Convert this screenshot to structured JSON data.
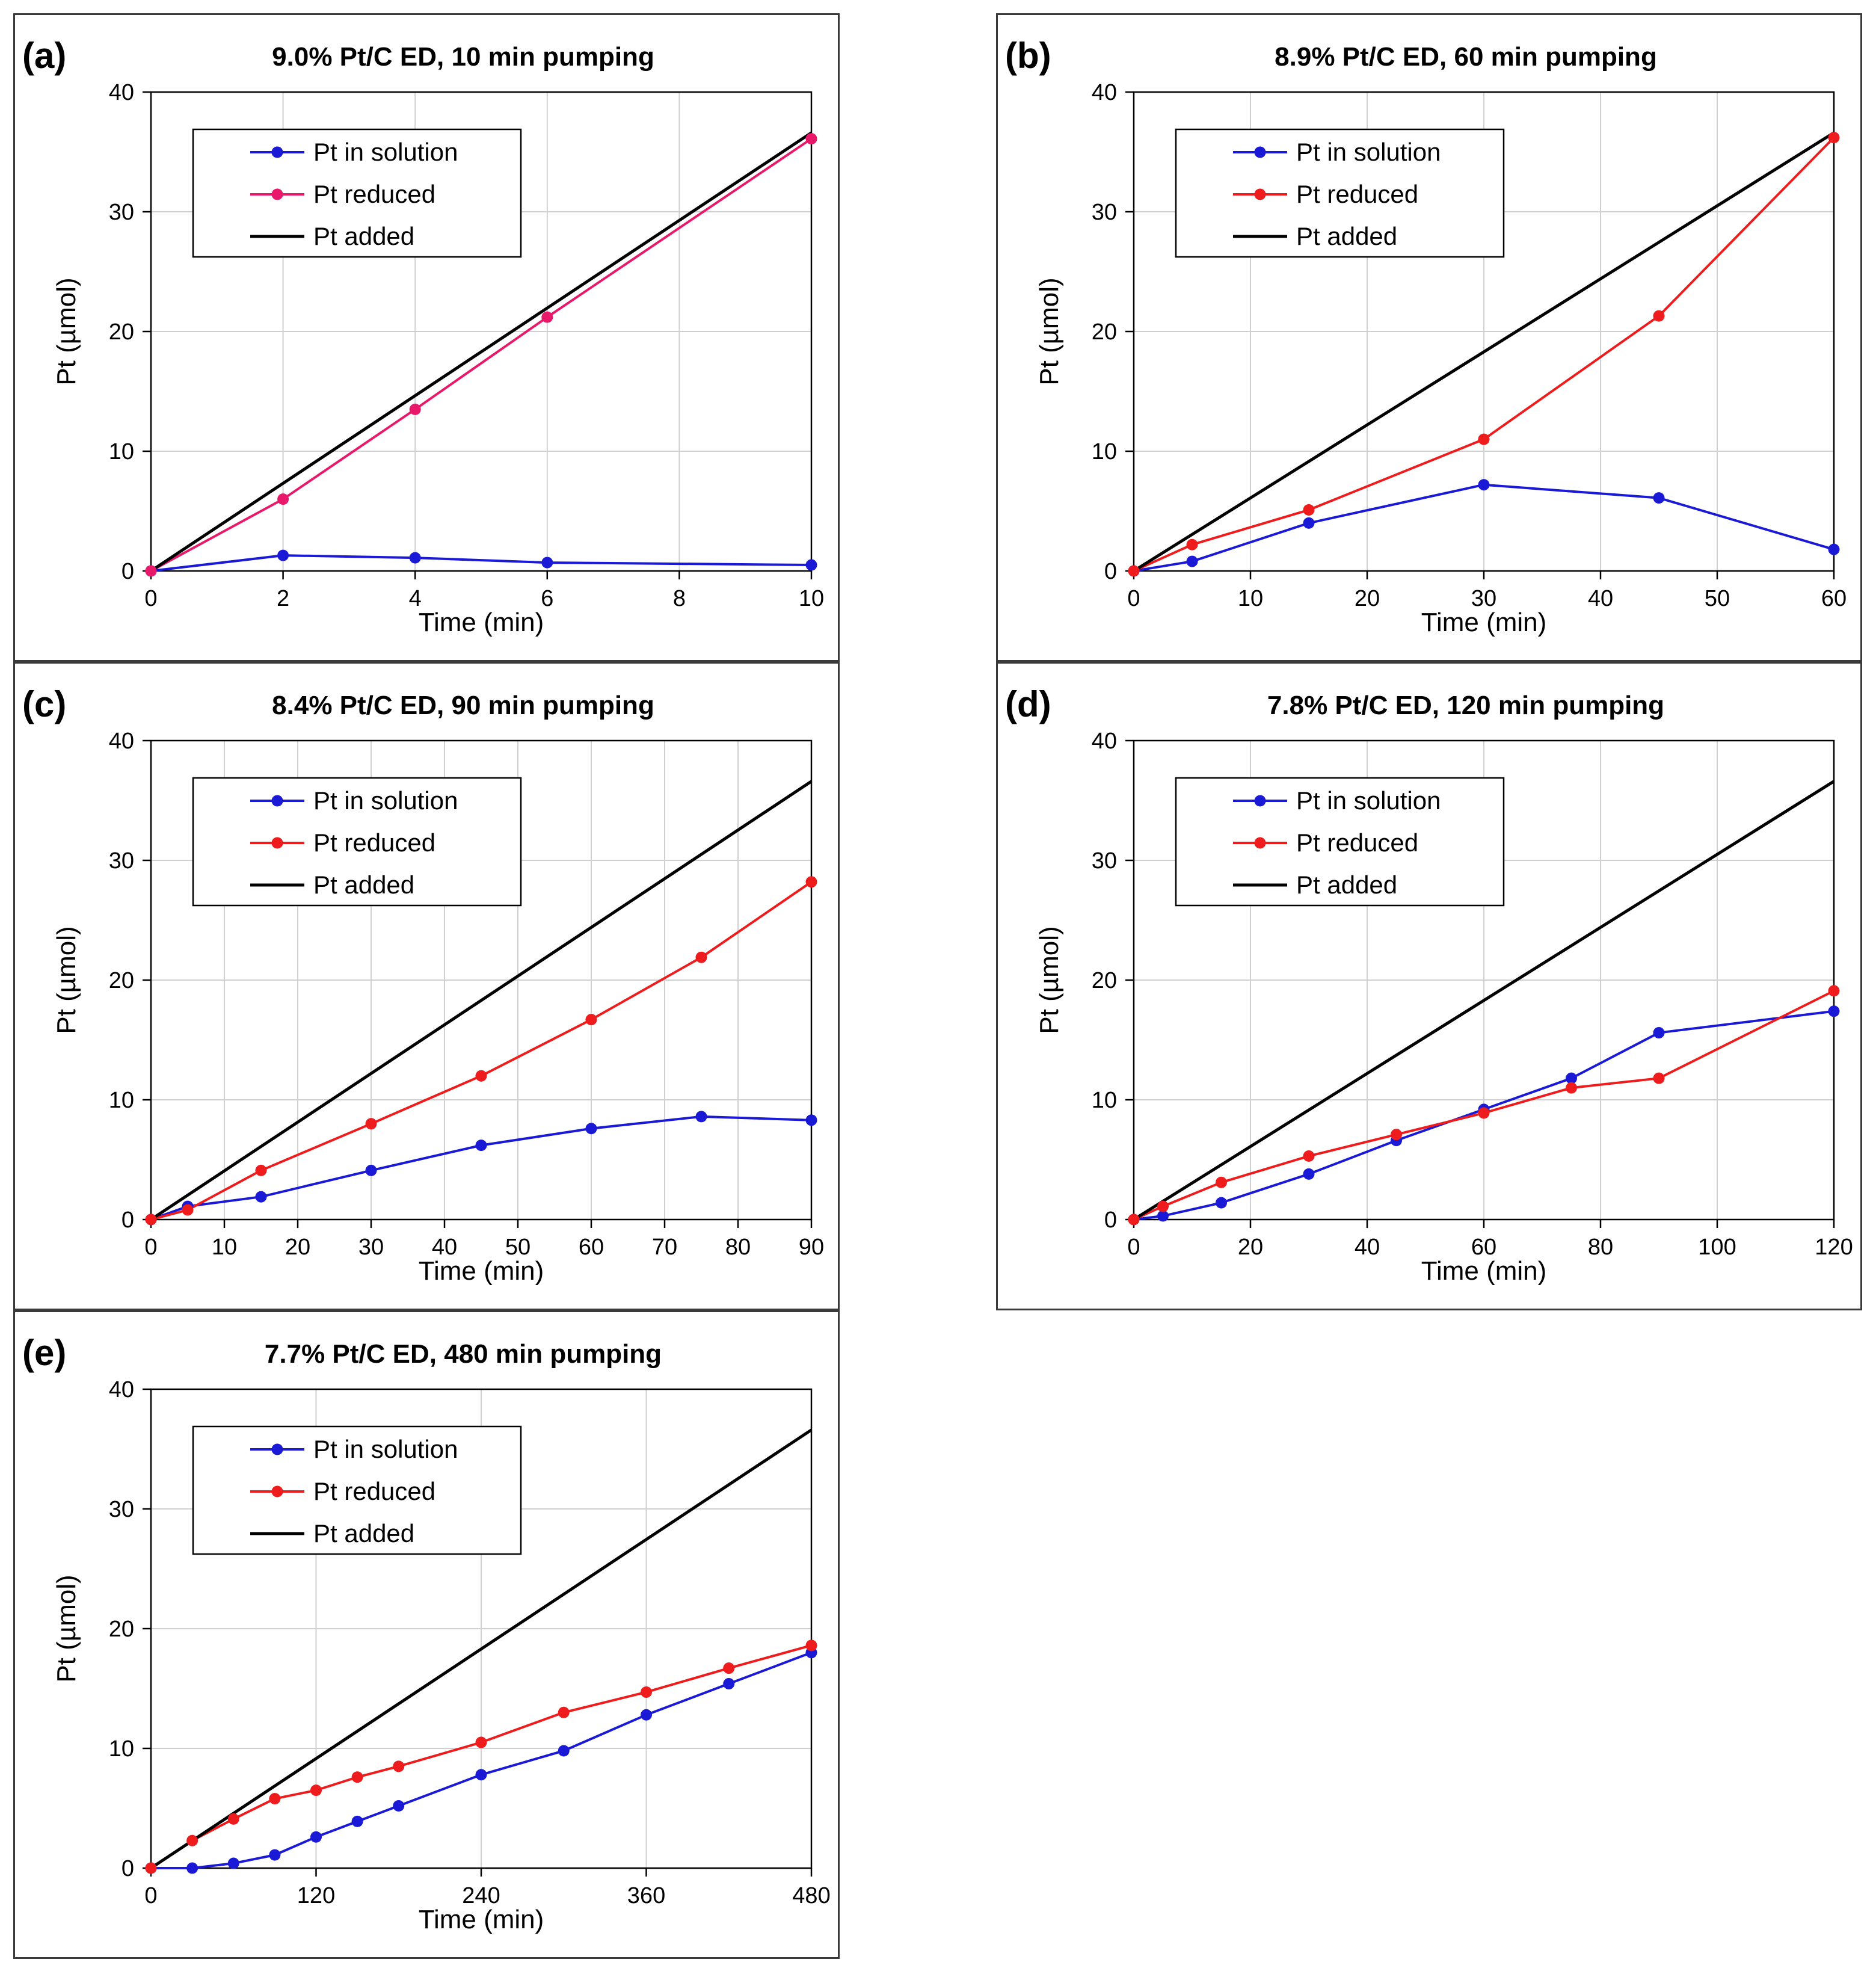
{
  "legend_labels": {
    "solution": "Pt in solution",
    "reduced": "Pt reduced",
    "added": "Pt added"
  },
  "colors": {
    "solution": "#1a1ad6",
    "reduced_a": "#e8196b",
    "reduced": "#ee1c1c",
    "added": "#000000",
    "grid": "#d0d0d0"
  },
  "chart_data": [
    {
      "panel": "(a)",
      "type": "line",
      "title": "9.0% Pt/C ED, 10 min pumping",
      "xlabel": "Time (min)",
      "ylabel": "Pt (µmol)",
      "xlim": [
        0,
        10
      ],
      "ylim": [
        0,
        40
      ],
      "xticks": [
        0,
        2,
        4,
        6,
        8,
        10
      ],
      "yticks": [
        0,
        10,
        20,
        30,
        40
      ],
      "grid": true,
      "legend": "top-left",
      "series": [
        {
          "name": "Pt in solution",
          "color": "#1a1ad6",
          "markers": true,
          "x": [
            0,
            2,
            4,
            6,
            10
          ],
          "y": [
            0,
            1.3,
            1.1,
            0.7,
            0.5
          ]
        },
        {
          "name": "Pt reduced",
          "color": "#e8196b",
          "markers": true,
          "x": [
            0,
            2,
            4,
            6,
            10
          ],
          "y": [
            0,
            6.0,
            13.5,
            21.2,
            36.1
          ]
        },
        {
          "name": "Pt added",
          "color": "#000000",
          "markers": false,
          "x": [
            0,
            10
          ],
          "y": [
            0,
            36.6
          ]
        }
      ]
    },
    {
      "panel": "(b)",
      "type": "line",
      "title": "8.9% Pt/C ED, 60 min pumping",
      "xlabel": "Time (min)",
      "ylabel": "Pt (µmol)",
      "xlim": [
        0,
        60
      ],
      "ylim": [
        0,
        40
      ],
      "xticks": [
        0,
        10,
        20,
        30,
        40,
        50,
        60
      ],
      "yticks": [
        0,
        10,
        20,
        30,
        40
      ],
      "grid": true,
      "legend": "top-left",
      "series": [
        {
          "name": "Pt in solution",
          "color": "#1a1ad6",
          "markers": true,
          "x": [
            0,
            5,
            15,
            30,
            45,
            60
          ],
          "y": [
            0,
            0.8,
            4.0,
            7.2,
            6.1,
            1.8
          ]
        },
        {
          "name": "Pt reduced",
          "color": "#ee1c1c",
          "markers": true,
          "x": [
            0,
            5,
            15,
            30,
            45,
            60
          ],
          "y": [
            0,
            2.2,
            5.1,
            11.0,
            21.3,
            36.2
          ]
        },
        {
          "name": "Pt added",
          "color": "#000000",
          "markers": false,
          "x": [
            0,
            60
          ],
          "y": [
            0,
            36.6
          ]
        }
      ]
    },
    {
      "panel": "(c)",
      "type": "line",
      "title": "8.4% Pt/C ED, 90 min pumping",
      "xlabel": "Time (min)",
      "ylabel": "Pt (µmol)",
      "xlim": [
        0,
        90
      ],
      "ylim": [
        0,
        40
      ],
      "xticks": [
        0,
        10,
        20,
        30,
        40,
        50,
        60,
        70,
        80,
        90
      ],
      "yticks": [
        0,
        10,
        20,
        30,
        40
      ],
      "grid": true,
      "legend": "top-left",
      "series": [
        {
          "name": "Pt in solution",
          "color": "#1a1ad6",
          "markers": true,
          "x": [
            0,
            5,
            15,
            30,
            45,
            60,
            75,
            90
          ],
          "y": [
            0,
            1.1,
            1.9,
            4.1,
            6.2,
            7.6,
            8.6,
            8.3
          ]
        },
        {
          "name": "Pt reduced",
          "color": "#ee1c1c",
          "markers": true,
          "x": [
            0,
            5,
            15,
            30,
            45,
            60,
            75,
            90
          ],
          "y": [
            0,
            0.8,
            4.1,
            8.0,
            12.0,
            16.7,
            21.9,
            28.2
          ]
        },
        {
          "name": "Pt added",
          "color": "#000000",
          "markers": false,
          "x": [
            0,
            90
          ],
          "y": [
            0,
            36.6
          ]
        }
      ]
    },
    {
      "panel": "(d)",
      "type": "line",
      "title": "7.8% Pt/C ED, 120 min pumping",
      "xlabel": "Time (min)",
      "ylabel": "Pt (µmol)",
      "xlim": [
        0,
        120
      ],
      "ylim": [
        0,
        40
      ],
      "xticks": [
        0,
        20,
        40,
        60,
        80,
        100,
        120
      ],
      "yticks": [
        0,
        10,
        20,
        30,
        40
      ],
      "grid": true,
      "legend": "top-left",
      "series": [
        {
          "name": "Pt in solution",
          "color": "#1a1ad6",
          "markers": true,
          "x": [
            0,
            5,
            15,
            30,
            45,
            60,
            75,
            90,
            120
          ],
          "y": [
            0,
            0.3,
            1.4,
            3.8,
            6.6,
            9.2,
            11.8,
            15.6,
            17.4
          ]
        },
        {
          "name": "Pt reduced",
          "color": "#ee1c1c",
          "markers": true,
          "x": [
            0,
            5,
            15,
            30,
            45,
            60,
            75,
            90,
            120
          ],
          "y": [
            0,
            1.1,
            3.1,
            5.3,
            7.1,
            8.9,
            11.0,
            11.8,
            19.1
          ]
        },
        {
          "name": "Pt added",
          "color": "#000000",
          "markers": false,
          "x": [
            0,
            120
          ],
          "y": [
            0,
            36.6
          ]
        }
      ]
    },
    {
      "panel": "(e)",
      "type": "line",
      "title": "7.7% Pt/C ED, 480 min pumping",
      "xlabel": "Time (min)",
      "ylabel": "Pt (µmol)",
      "xlim": [
        0,
        480
      ],
      "ylim": [
        0,
        40
      ],
      "xticks": [
        0,
        120,
        240,
        360,
        480
      ],
      "yticks": [
        0,
        10,
        20,
        30,
        40
      ],
      "grid": true,
      "legend": "top-left",
      "series": [
        {
          "name": "Pt in solution",
          "color": "#1a1ad6",
          "markers": true,
          "x": [
            0,
            30,
            60,
            90,
            120,
            150,
            180,
            240,
            300,
            360,
            420,
            480
          ],
          "y": [
            0,
            0,
            0.4,
            1.1,
            2.6,
            3.9,
            5.2,
            7.8,
            9.8,
            12.8,
            15.4,
            18.0
          ]
        },
        {
          "name": "Pt reduced",
          "color": "#ee1c1c",
          "markers": true,
          "x": [
            0,
            30,
            60,
            90,
            120,
            150,
            180,
            240,
            300,
            360,
            420,
            480
          ],
          "y": [
            0,
            2.3,
            4.1,
            5.8,
            6.5,
            7.6,
            8.5,
            10.5,
            13.0,
            14.7,
            16.7,
            18.6
          ]
        },
        {
          "name": "Pt added",
          "color": "#000000",
          "markers": false,
          "x": [
            0,
            480
          ],
          "y": [
            0,
            36.6
          ]
        }
      ]
    }
  ]
}
